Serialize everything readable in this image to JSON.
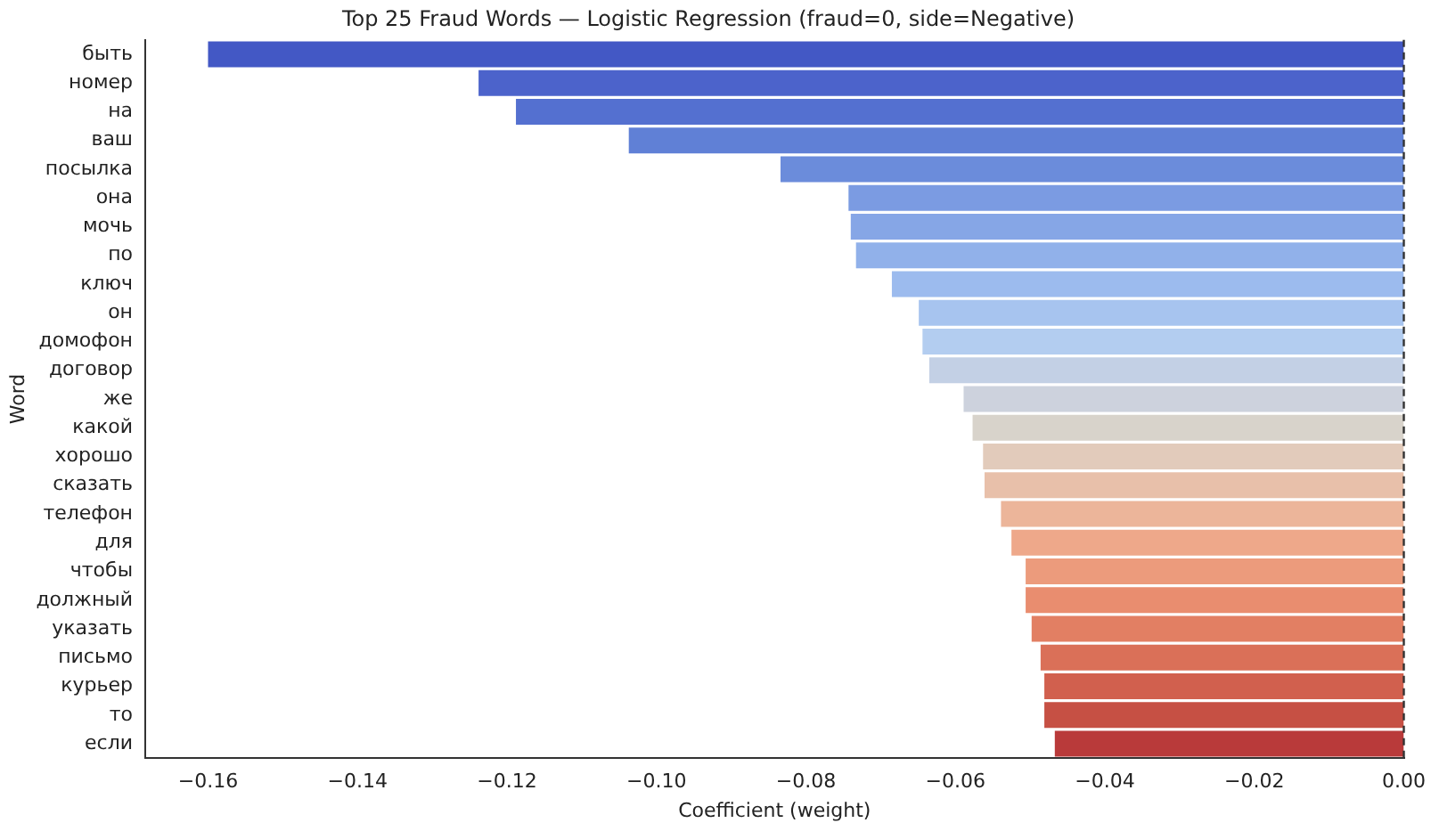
{
  "chart_data": {
    "type": "bar",
    "orientation": "horizontal",
    "title": "Top 25 Fraud Words — Logistic Regression (fraud=0, side=Negative)",
    "xlabel": "Coefficient (weight)",
    "ylabel": "Word",
    "categories": [
      "быть",
      "номер",
      "на",
      "ваш",
      "посылка",
      "она",
      "мочь",
      "по",
      "ключ",
      "он",
      "домофон",
      "договор",
      "же",
      "какой",
      "хорошо",
      "сказать",
      "телефон",
      "для",
      "чтобы",
      "должный",
      "указать",
      "письмо",
      "курьер",
      "то",
      "если"
    ],
    "values": [
      -0.16,
      -0.1238,
      -0.1188,
      -0.1037,
      -0.0834,
      -0.0743,
      -0.074,
      -0.0733,
      -0.0685,
      -0.0649,
      -0.0644,
      -0.0635,
      -0.0589,
      -0.0577,
      -0.0563,
      -0.0561,
      -0.0539,
      -0.0525,
      -0.0506,
      -0.0506,
      -0.0498,
      -0.0486,
      -0.0481,
      -0.0481,
      -0.0467
    ],
    "colors": [
      "#4358c5",
      "#4c63cb",
      "#5470d0",
      "#6080d6",
      "#6b8cdb",
      "#7b9be2",
      "#86a6e6",
      "#91b1ea",
      "#9cbbee",
      "#a7c4ef",
      "#b3cdf0",
      "#c3d0e5",
      "#cdd2dd",
      "#d8d3cb",
      "#e2cbbb",
      "#e8c0aa",
      "#ecb59a",
      "#eea88a",
      "#ec9b7c",
      "#e98d6f",
      "#e27f63",
      "#da7058",
      "#d1604e",
      "#c65044",
      "#b93a3a"
    ],
    "xlim": [
      -0.1684,
      0
    ],
    "xticks": [
      {
        "value": -0.16,
        "label": "−0.16"
      },
      {
        "value": -0.14,
        "label": "−0.14"
      },
      {
        "value": -0.12,
        "label": "−0.12"
      },
      {
        "value": -0.1,
        "label": "−0.10"
      },
      {
        "value": -0.08,
        "label": "−0.08"
      },
      {
        "value": -0.06,
        "label": "−0.06"
      },
      {
        "value": -0.04,
        "label": "−0.04"
      },
      {
        "value": -0.02,
        "label": "−0.02"
      },
      {
        "value": 0,
        "label": "0.00"
      }
    ],
    "ref_lines": [
      {
        "axis": "x",
        "value": 0,
        "color": "#333333",
        "line_style": "dashed"
      }
    ],
    "grid": false,
    "legend": false
  }
}
